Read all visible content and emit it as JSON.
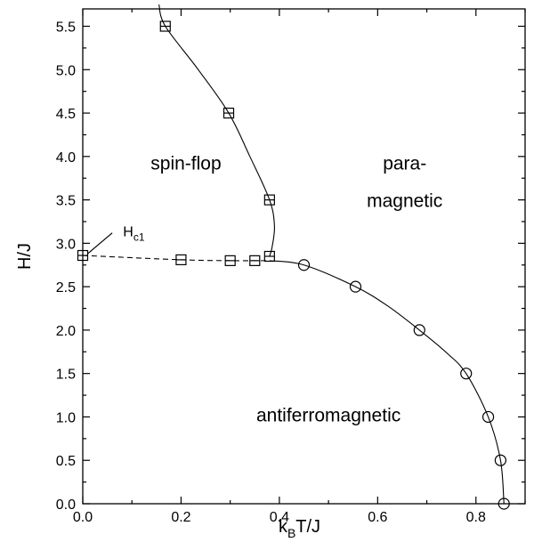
{
  "chart_data": {
    "type": "scatter",
    "xlabel": {
      "main": "k",
      "sub": "B",
      "rest": "T/J"
    },
    "ylabel": "H/J",
    "xlim": [
      0,
      0.9
    ],
    "ylim": [
      0,
      5.7
    ],
    "x_ticks": [
      "0.0",
      "0.2",
      "0.4",
      "0.6",
      "0.8"
    ],
    "x_tick_values": [
      0,
      0.2,
      0.4,
      0.6,
      0.8
    ],
    "y_ticks": [
      "0.0",
      "0.5",
      "1.0",
      "1.5",
      "2.0",
      "2.5",
      "3.0",
      "3.5",
      "4.0",
      "4.5",
      "5.0",
      "5.5"
    ],
    "y_tick_values": [
      0,
      0.5,
      1.0,
      1.5,
      2.0,
      2.5,
      3.0,
      3.5,
      4.0,
      4.5,
      5.0,
      5.5
    ],
    "series": [
      {
        "marker": "square",
        "points": [
          {
            "x": 0.0,
            "y": 2.86
          },
          {
            "x": 0.2,
            "y": 2.81
          },
          {
            "x": 0.3,
            "y": 2.8
          },
          {
            "x": 0.35,
            "y": 2.8
          },
          {
            "x": 0.38,
            "y": 2.85
          },
          {
            "x": 0.38,
            "y": 3.5
          },
          {
            "x": 0.297,
            "y": 4.5
          },
          {
            "x": 0.168,
            "y": 5.5
          }
        ]
      },
      {
        "marker": "circle",
        "points": [
          {
            "x": 0.45,
            "y": 2.75
          },
          {
            "x": 0.555,
            "y": 2.5
          },
          {
            "x": 0.685,
            "y": 2.0
          },
          {
            "x": 0.78,
            "y": 1.5
          },
          {
            "x": 0.825,
            "y": 1.0
          },
          {
            "x": 0.85,
            "y": 0.5
          },
          {
            "x": 0.857,
            "y": 0.0
          }
        ]
      }
    ],
    "curves": [
      {
        "style": "solid",
        "points": [
          [
            0.155,
            5.75
          ],
          [
            0.168,
            5.5
          ],
          [
            0.235,
            5.0
          ],
          [
            0.297,
            4.5
          ],
          [
            0.34,
            4.0
          ],
          [
            0.38,
            3.5
          ],
          [
            0.39,
            3.2
          ],
          [
            0.385,
            2.95
          ],
          [
            0.38,
            2.85
          ]
        ]
      },
      {
        "style": "dashed",
        "points": [
          [
            0.0,
            2.86
          ],
          [
            0.2,
            2.81
          ],
          [
            0.3,
            2.8
          ],
          [
            0.35,
            2.8
          ],
          [
            0.38,
            2.8
          ]
        ]
      },
      {
        "style": "solid",
        "points": [
          [
            0.38,
            2.8
          ],
          [
            0.45,
            2.75
          ],
          [
            0.555,
            2.5
          ],
          [
            0.62,
            2.28
          ],
          [
            0.685,
            2.0
          ],
          [
            0.74,
            1.74
          ],
          [
            0.78,
            1.5
          ],
          [
            0.825,
            1.0
          ],
          [
            0.85,
            0.5
          ],
          [
            0.857,
            0.0
          ]
        ]
      }
    ],
    "annotations": [
      {
        "text": "spin-flop",
        "x": 0.21,
        "y": 3.85
      },
      {
        "text": "para-",
        "x": 0.655,
        "y": 3.85
      },
      {
        "text": "magnetic",
        "x": 0.655,
        "y": 3.42
      },
      {
        "text": "antiferromagnetic",
        "x": 0.5,
        "y": 0.95
      }
    ],
    "hc1_label": {
      "main": "H",
      "sub": "c1",
      "x": 0.082,
      "y": 3.08,
      "pointer_to": [
        0.01,
        2.88
      ],
      "pointer_from": [
        0.06,
        3.12
      ]
    }
  }
}
